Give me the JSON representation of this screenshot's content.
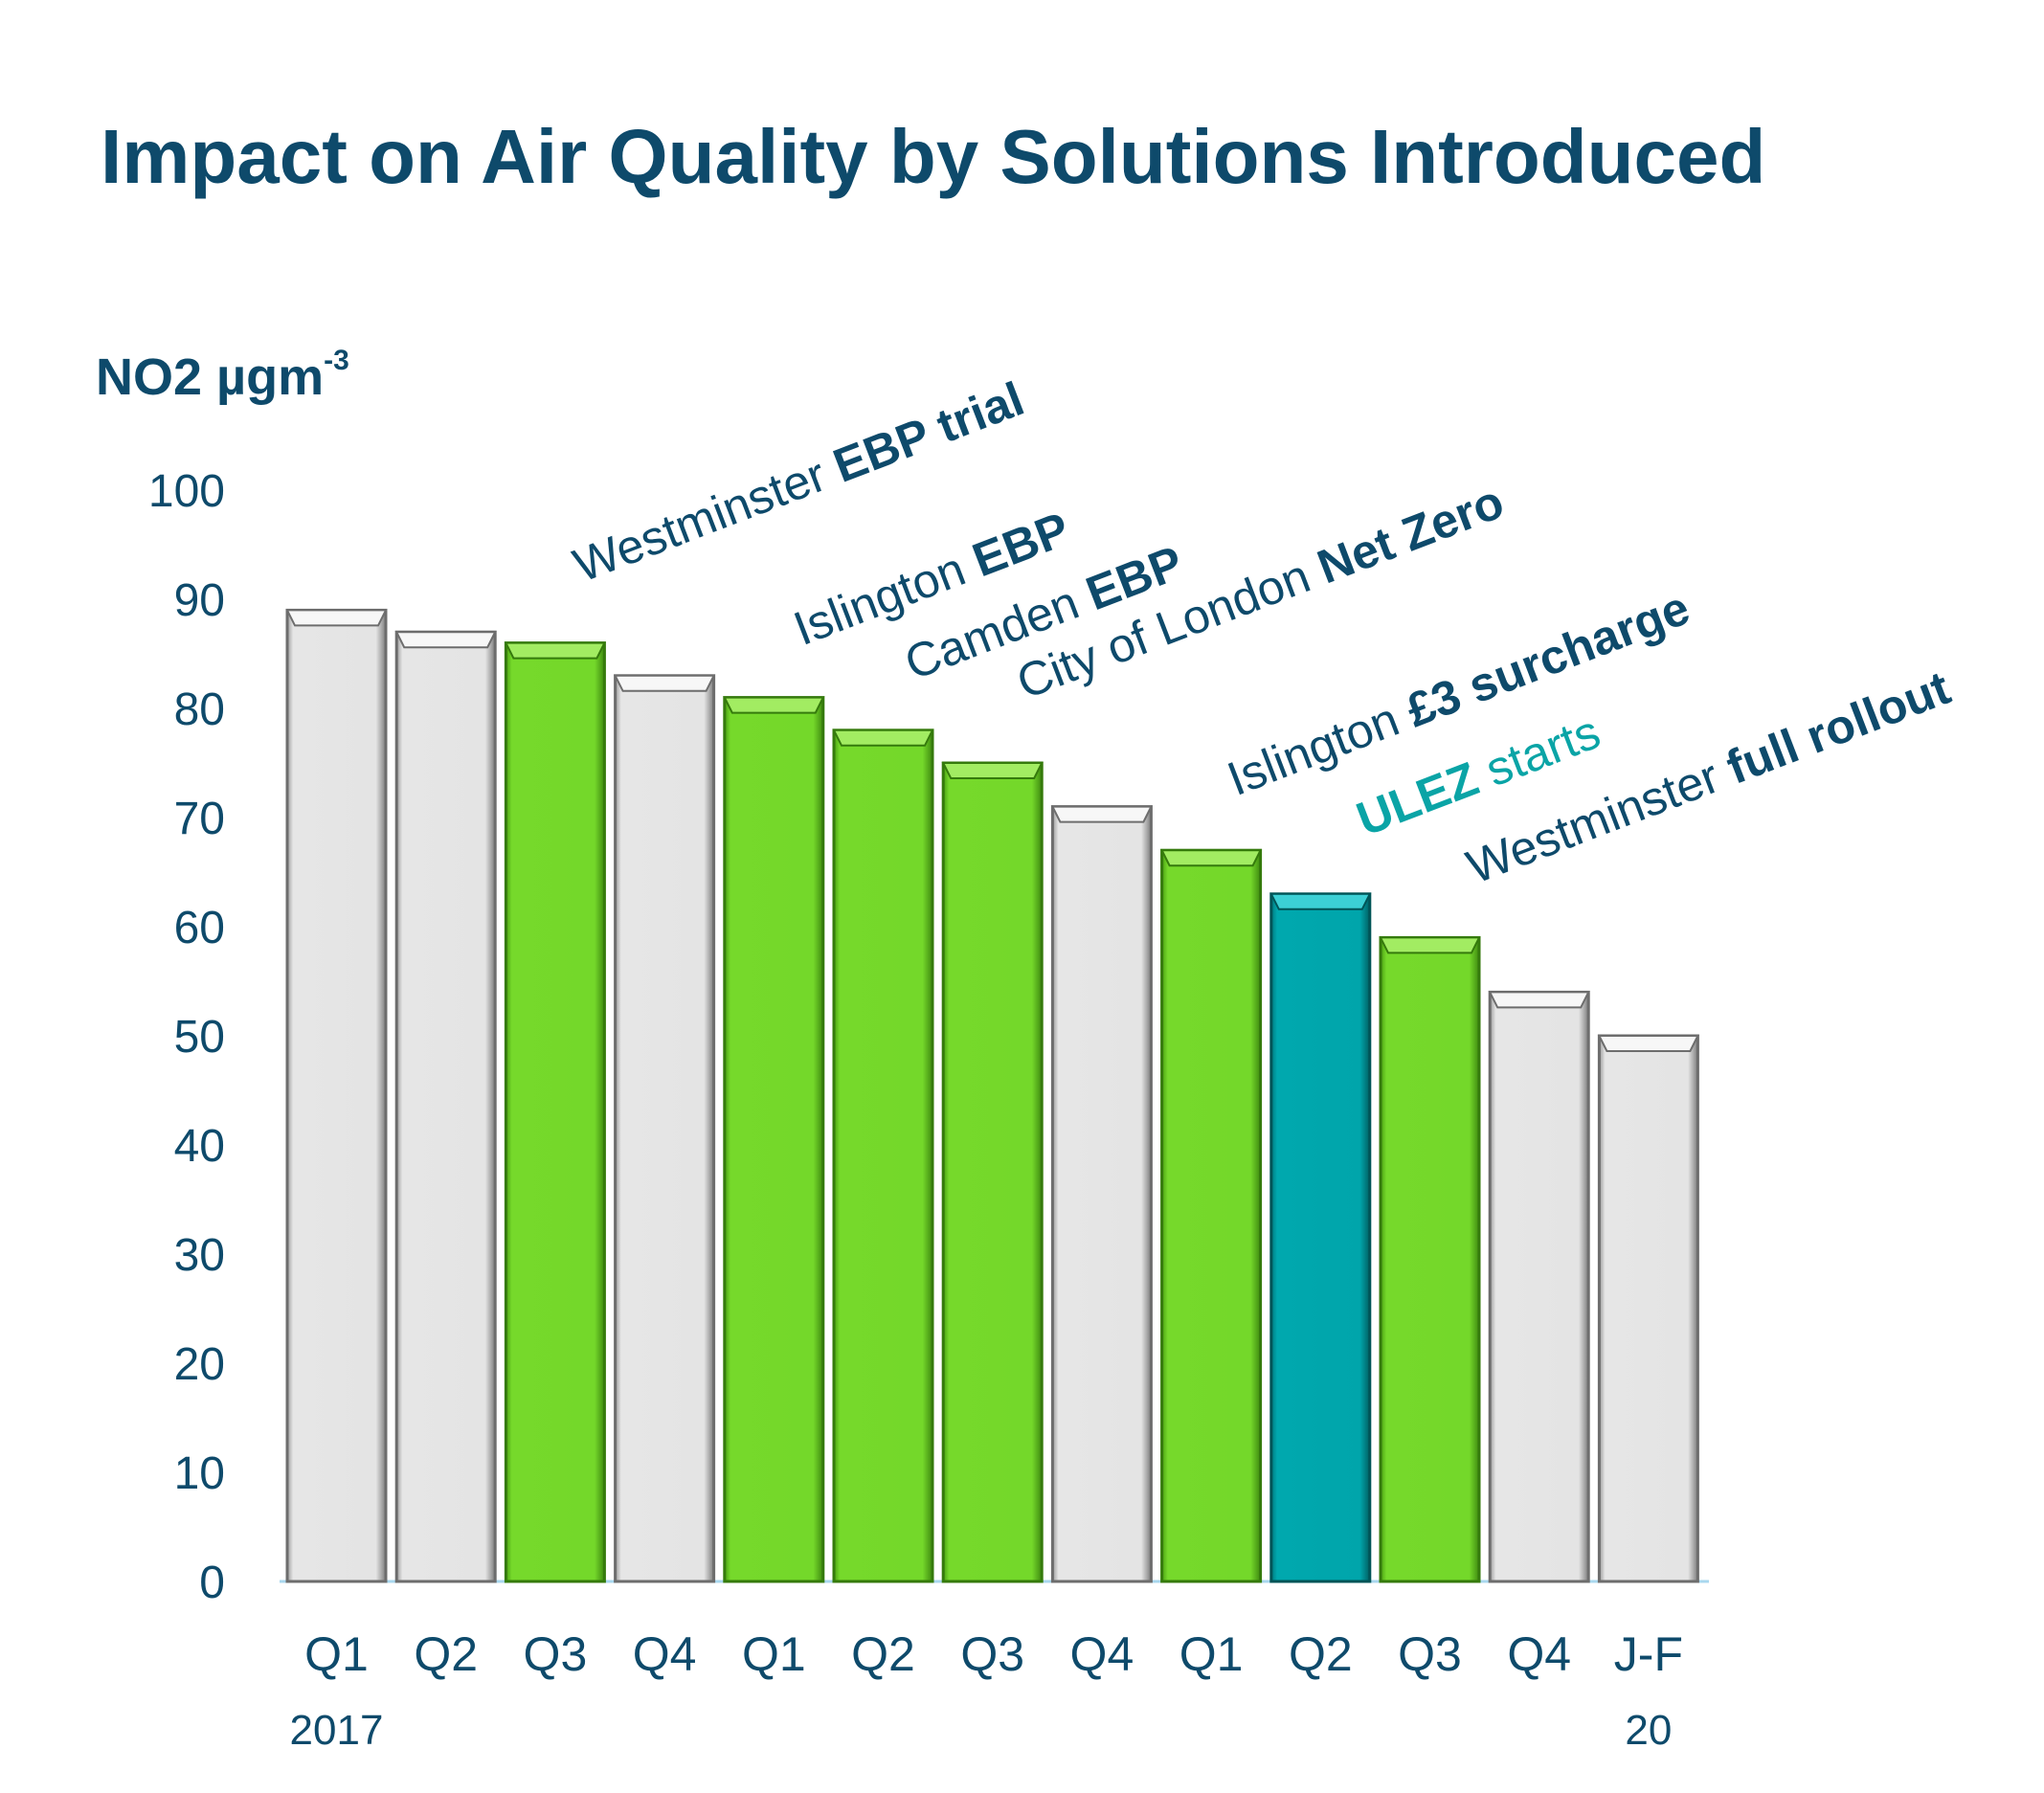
{
  "title": "Impact on Air Quality by Solutions Introduced",
  "y_unit": {
    "text": "NO2 µgm",
    "superscript": "-3"
  },
  "colors": {
    "text": "#0e4a6b",
    "grey_bar": "#e4e4e4",
    "green_bar": "#74d82a",
    "teal_bar": "#00a5ab",
    "teal_text": "#0aa4a6",
    "axis_line": "#a9d7ee"
  },
  "annotations": [
    {
      "id": "westminster-ebp-trial",
      "prefix": "Westminster ",
      "bold": "EBP trial",
      "color": "#0e4a6b"
    },
    {
      "id": "islington-ebp",
      "prefix": "Islington ",
      "bold": "EBP",
      "color": "#0e4a6b"
    },
    {
      "id": "camden-ebp",
      "prefix": "Camden ",
      "bold": "EBP",
      "color": "#0e4a6b"
    },
    {
      "id": "city-net-zero",
      "prefix": "City of London ",
      "bold": "Net Zero",
      "color": "#0e4a6b"
    },
    {
      "id": "islington-surcharge",
      "prefix": "Islington ",
      "bold": "£3 surcharge",
      "color": "#0e4a6b"
    },
    {
      "id": "ulez-starts",
      "bold": "ULEZ",
      "suffix": " starts",
      "color": "#0aa4a6"
    },
    {
      "id": "westminster-full-rollout",
      "prefix": "Westminster ",
      "bold": "full rollout",
      "color": "#0e4a6b"
    }
  ],
  "chart_data": {
    "type": "bar",
    "categories": [
      "Q1",
      "Q2",
      "Q3",
      "Q4",
      "Q1",
      "Q2",
      "Q3",
      "Q4",
      "Q1",
      "Q2",
      "Q3",
      "Q4",
      "J-F"
    ],
    "sub_labels": [
      "2017",
      "",
      "",
      "",
      "",
      "",
      "",
      "",
      "",
      "",
      "",
      "",
      "20"
    ],
    "values": [
      89,
      87,
      86,
      83,
      81,
      78,
      75,
      71,
      67,
      63,
      59,
      54,
      50
    ],
    "bar_colors": [
      "grey",
      "grey",
      "green",
      "grey",
      "green",
      "green",
      "green",
      "grey",
      "green",
      "teal",
      "green",
      "grey",
      "grey"
    ],
    "ylabel": "NO2 µgm-3",
    "ylim": [
      0,
      100
    ],
    "yticks": [
      0,
      10,
      20,
      30,
      40,
      50,
      60,
      70,
      80,
      90,
      100
    ],
    "grid": false,
    "legend": "none"
  }
}
